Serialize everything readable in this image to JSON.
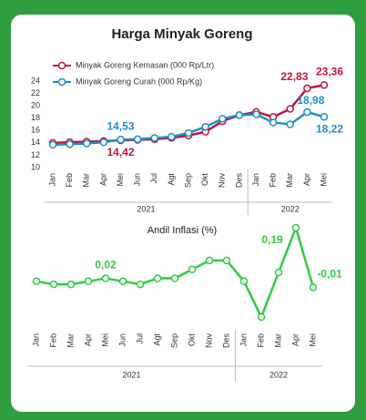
{
  "chart_data": [
    {
      "type": "line",
      "title": "Harga Minyak Goreng",
      "categories": [
        "Jan",
        "Feb",
        "Mar",
        "Apr",
        "Mei",
        "Jun",
        "Jul",
        "Agt",
        "Sep",
        "Okt",
        "Nov",
        "Des",
        "Jan",
        "Feb",
        "Mar",
        "Apr",
        "Mei"
      ],
      "groups": [
        "2021",
        "2022"
      ],
      "series": [
        {
          "name": "Minyak Goreng Kemasan (000 Rp/Ltr)",
          "color": "#c0143c",
          "values": [
            14.0,
            14.1,
            14.2,
            14.3,
            14.42,
            14.5,
            14.6,
            14.8,
            15.2,
            15.8,
            17.5,
            18.5,
            19.0,
            18.2,
            19.5,
            22.83,
            23.36
          ],
          "value_labels": [
            null,
            null,
            null,
            null,
            "14,42",
            null,
            null,
            null,
            null,
            null,
            null,
            null,
            null,
            null,
            null,
            "22,83",
            "23,36"
          ]
        },
        {
          "name": "Minyak Goreng Curah (000 Rp/Kg)",
          "color": "#1e8fc8",
          "values": [
            13.7,
            13.8,
            13.9,
            14.1,
            14.53,
            14.6,
            14.8,
            15.0,
            15.6,
            16.6,
            17.9,
            18.5,
            18.6,
            17.3,
            17.0,
            18.98,
            18.22
          ],
          "value_labels": [
            null,
            null,
            null,
            null,
            "14,53",
            null,
            null,
            null,
            null,
            null,
            null,
            null,
            null,
            null,
            null,
            "18,98",
            "18,22"
          ]
        }
      ],
      "ylim": [
        10,
        24
      ],
      "yticks": [
        10,
        12,
        14,
        16,
        18,
        20,
        22,
        24
      ],
      "grid": false
    },
    {
      "type": "line",
      "title": "Andil Inflasi (%)",
      "categories": [
        "Jan",
        "Feb",
        "Mar",
        "Apr",
        "Mei",
        "Jun",
        "Jul",
        "Agt",
        "Sep",
        "Okt",
        "Nov",
        "Des",
        "Jan",
        "Feb",
        "Mar",
        "Apr",
        "Mei"
      ],
      "groups": [
        "2021",
        "2022"
      ],
      "series": [
        {
          "name": "Andil Inflasi",
          "color": "#2ecc40",
          "values": [
            0.01,
            0.0,
            0.0,
            0.01,
            0.02,
            0.01,
            0.0,
            0.02,
            0.02,
            0.05,
            0.08,
            0.08,
            0.01,
            -0.11,
            0.04,
            0.19,
            -0.01
          ],
          "value_labels": [
            null,
            null,
            null,
            null,
            "0,02",
            null,
            null,
            null,
            null,
            null,
            null,
            null,
            null,
            null,
            null,
            "0,19",
            "-0,01"
          ]
        }
      ]
    }
  ]
}
